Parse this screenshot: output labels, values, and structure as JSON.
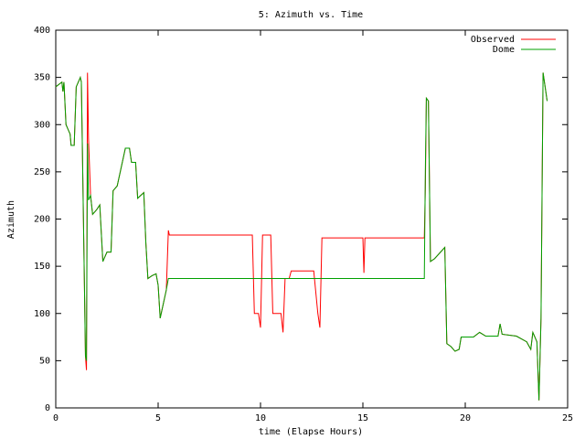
{
  "chart_data": {
    "type": "line",
    "title": "5: Azimuth vs. Time",
    "x_label": "time (Elapse Hours)",
    "y_label": "Azimuth",
    "x": [
      0,
      0.3,
      0.35,
      0.4,
      0.5,
      0.6,
      0.7,
      0.75,
      0.9,
      1.0,
      1.1,
      1.2,
      1.25,
      1.3,
      1.4,
      1.45,
      1.5,
      1.55,
      1.6,
      1.7,
      1.8,
      2.0,
      2.15,
      2.3,
      2.5,
      2.7,
      2.8,
      3.0,
      3.2,
      3.4,
      3.6,
      3.7,
      3.9,
      4.0,
      4.3,
      4.4,
      4.5,
      4.7,
      4.9,
      5.0,
      5.1,
      5.2,
      5.4,
      5.5,
      5.55,
      9.6,
      9.7,
      9.9,
      10.0,
      10.1,
      10.5,
      10.6,
      11.0,
      11.1,
      11.2,
      11.4,
      11.5,
      12.6,
      12.8,
      12.9,
      13.0,
      15.0,
      15.05,
      15.1,
      18.0,
      18.05,
      18.1,
      18.2,
      18.3,
      18.5,
      19.0,
      19.1,
      19.3,
      19.5,
      19.7,
      19.8,
      20.4,
      20.7,
      21.0,
      21.6,
      21.7,
      21.8,
      22.5,
      23.0,
      23.2,
      23.3,
      23.5,
      23.6,
      23.7,
      23.8,
      24.0
    ],
    "series": [
      {
        "name": "Observed",
        "color": "#ff0000",
        "values": [
          340,
          345,
          335,
          345,
          300,
          295,
          290,
          278,
          278,
          340,
          345,
          350,
          345,
          275,
          130,
          55,
          40,
          355,
          285,
          225,
          205,
          210,
          215,
          155,
          165,
          165,
          230,
          235,
          255,
          275,
          275,
          260,
          260,
          222,
          228,
          175,
          137,
          140,
          142,
          130,
          95,
          105,
          125,
          188,
          183,
          183,
          100,
          100,
          85,
          183,
          183,
          100,
          100,
          80,
          137,
          137,
          145,
          145,
          100,
          85,
          180,
          180,
          143,
          180,
          180,
          232,
          328,
          325,
          155,
          158,
          170,
          68,
          65,
          60,
          62,
          75,
          75,
          80,
          76,
          76,
          89,
          78,
          76,
          70,
          62,
          80,
          70,
          8,
          95,
          355,
          325
        ]
      },
      {
        "name": "Dome",
        "color": "#00a000",
        "values": [
          340,
          345,
          335,
          345,
          300,
          295,
          290,
          278,
          278,
          340,
          345,
          350,
          345,
          275,
          130,
          55,
          50,
          280,
          220,
          225,
          205,
          210,
          215,
          155,
          165,
          165,
          230,
          235,
          255,
          275,
          275,
          260,
          260,
          222,
          228,
          175,
          137,
          140,
          142,
          130,
          95,
          105,
          125,
          137,
          137,
          137,
          137,
          137,
          137,
          137,
          137,
          137,
          137,
          137,
          137,
          137,
          137,
          137,
          137,
          137,
          137,
          137,
          137,
          137,
          137,
          250,
          328,
          325,
          155,
          158,
          170,
          68,
          65,
          60,
          62,
          75,
          75,
          80,
          76,
          76,
          89,
          78,
          76,
          70,
          62,
          80,
          70,
          8,
          95,
          355,
          325
        ]
      }
    ],
    "xlim": [
      0,
      25
    ],
    "xticks": [
      0,
      5,
      10,
      15,
      20,
      25
    ],
    "ylim": [
      0,
      400
    ],
    "yticks": [
      0,
      50,
      100,
      150,
      200,
      250,
      300,
      350,
      400
    ],
    "legend": "top-right",
    "grid": false
  }
}
